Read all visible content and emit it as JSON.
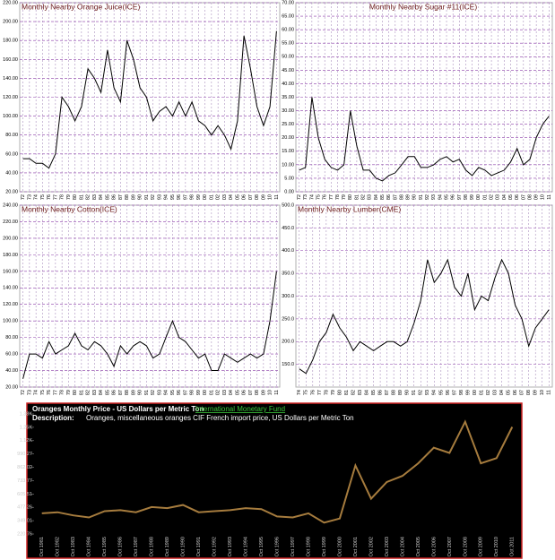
{
  "chart_data": [
    {
      "type": "line",
      "title": "Monthly Nearby Orange Juice(ICE)",
      "color": "#000000",
      "grid": true,
      "categories": [
        "72",
        "73",
        "74",
        "75",
        "76",
        "77",
        "78",
        "79",
        "80",
        "81",
        "82",
        "83",
        "84",
        "85",
        "86",
        "87",
        "88",
        "89",
        "90",
        "91",
        "92",
        "93",
        "94",
        "95",
        "96",
        "97",
        "98",
        "99",
        "00",
        "01",
        "02",
        "03",
        "04",
        "05",
        "06",
        "07",
        "08",
        "09",
        "10",
        "11"
      ],
      "values": [
        55,
        55,
        50,
        50,
        45,
        60,
        120,
        110,
        95,
        110,
        150,
        140,
        125,
        170,
        130,
        115,
        180,
        160,
        130,
        120,
        95,
        105,
        110,
        100,
        115,
        100,
        115,
        95,
        90,
        80,
        90,
        80,
        65,
        95,
        185,
        150,
        110,
        90,
        110,
        190
      ],
      "ylim": [
        20,
        220
      ],
      "yticks": [
        {
          "value": 20,
          "label": "20.00"
        },
        {
          "value": 40,
          "label": "40.00"
        },
        {
          "value": 60,
          "label": "60.00"
        },
        {
          "value": 80,
          "label": "80.00"
        },
        {
          "value": 100,
          "label": "100.00"
        },
        {
          "value": 120,
          "label": "120.00"
        },
        {
          "value": 140,
          "label": "140.00"
        },
        {
          "value": 160,
          "label": "160.00"
        },
        {
          "value": 180,
          "label": "180.00"
        },
        {
          "value": 200,
          "label": "200.00"
        },
        {
          "value": 220,
          "label": "220.00"
        }
      ]
    },
    {
      "type": "line",
      "title": "Monthly Nearby Sugar #11(ICE)",
      "color": "#000000",
      "grid": true,
      "categories": [
        "72",
        "73",
        "74",
        "75",
        "76",
        "77",
        "78",
        "79",
        "80",
        "81",
        "82",
        "83",
        "84",
        "85",
        "86",
        "87",
        "88",
        "89",
        "90",
        "91",
        "92",
        "93",
        "94",
        "95",
        "96",
        "97",
        "98",
        "99",
        "00",
        "01",
        "02",
        "03",
        "04",
        "05",
        "06",
        "07",
        "08",
        "09",
        "10",
        "11"
      ],
      "values": [
        8,
        9,
        35,
        20,
        12,
        9,
        8,
        10,
        30,
        17,
        8,
        8,
        5,
        4,
        6,
        7,
        10,
        13,
        13,
        9,
        9,
        10,
        12,
        13,
        11,
        12,
        8,
        6,
        9,
        8,
        6,
        7,
        8,
        11,
        16,
        10,
        12,
        20,
        25,
        28
      ],
      "ylim": [
        0,
        70
      ],
      "yticks": [
        {
          "value": 0,
          "label": "0.00"
        },
        {
          "value": 5,
          "label": "5.00"
        },
        {
          "value": 10,
          "label": "10.00"
        },
        {
          "value": 15,
          "label": "15.00"
        },
        {
          "value": 20,
          "label": "20.00"
        },
        {
          "value": 25,
          "label": "25.00"
        },
        {
          "value": 30,
          "label": "30.00"
        },
        {
          "value": 35,
          "label": "35.00"
        },
        {
          "value": 40,
          "label": "40.00"
        },
        {
          "value": 45,
          "label": "45.00"
        },
        {
          "value": 50,
          "label": "50.00"
        },
        {
          "value": 55,
          "label": "55.00"
        },
        {
          "value": 60,
          "label": "60.00"
        },
        {
          "value": 65,
          "label": "65.00"
        },
        {
          "value": 70,
          "label": "70.00"
        }
      ]
    },
    {
      "type": "line",
      "title": "Monthly Nearby Cotton(ICE)",
      "color": "#000000",
      "grid": true,
      "categories": [
        "72",
        "73",
        "74",
        "75",
        "76",
        "77",
        "78",
        "79",
        "80",
        "81",
        "82",
        "83",
        "84",
        "85",
        "86",
        "87",
        "88",
        "89",
        "90",
        "91",
        "92",
        "93",
        "94",
        "95",
        "96",
        "97",
        "98",
        "99",
        "00",
        "01",
        "02",
        "03",
        "04",
        "05",
        "06",
        "07",
        "08",
        "09",
        "10",
        "11"
      ],
      "values": [
        30,
        60,
        60,
        55,
        75,
        60,
        65,
        70,
        85,
        70,
        65,
        75,
        70,
        60,
        45,
        70,
        60,
        70,
        75,
        70,
        55,
        60,
        80,
        100,
        80,
        75,
        65,
        55,
        60,
        40,
        40,
        60,
        55,
        50,
        55,
        60,
        55,
        60,
        100,
        160
      ],
      "ylim": [
        20,
        240
      ],
      "yticks": [
        {
          "value": 20,
          "label": "20.00"
        },
        {
          "value": 40,
          "label": "40.00"
        },
        {
          "value": 60,
          "label": "60.00"
        },
        {
          "value": 80,
          "label": "80.00"
        },
        {
          "value": 100,
          "label": "100.00"
        },
        {
          "value": 120,
          "label": "120.00"
        },
        {
          "value": 140,
          "label": "140.00"
        },
        {
          "value": 160,
          "label": "160.00"
        },
        {
          "value": 180,
          "label": "180.00"
        },
        {
          "value": 200,
          "label": "200.00"
        },
        {
          "value": 220,
          "label": "220.00"
        },
        {
          "value": 240,
          "label": "240.00"
        }
      ]
    },
    {
      "type": "line",
      "title": "Monthly Nearby Lumber(CME)",
      "color": "#000000",
      "grid": true,
      "categories": [
        "74",
        "75",
        "76",
        "77",
        "78",
        "79",
        "80",
        "81",
        "82",
        "83",
        "84",
        "85",
        "86",
        "87",
        "88",
        "89",
        "90",
        "91",
        "92",
        "93",
        "94",
        "95",
        "96",
        "97",
        "98",
        "99",
        "00",
        "01",
        "02",
        "03",
        "04",
        "05",
        "06",
        "07",
        "08",
        "09",
        "10",
        "11"
      ],
      "values": [
        140,
        130,
        160,
        200,
        220,
        260,
        230,
        210,
        180,
        200,
        190,
        180,
        190,
        200,
        200,
        190,
        200,
        240,
        290,
        380,
        330,
        350,
        380,
        320,
        300,
        350,
        270,
        300,
        290,
        340,
        380,
        350,
        280,
        250,
        190,
        230,
        250,
        270
      ],
      "ylim": [
        100,
        500
      ],
      "yticks": [
        {
          "value": 150,
          "label": "150.0"
        },
        {
          "value": 200,
          "label": "200.0"
        },
        {
          "value": 250,
          "label": "250.0"
        },
        {
          "value": 300,
          "label": "300.0"
        },
        {
          "value": 350,
          "label": "350.0"
        },
        {
          "value": 400,
          "label": "400.0"
        },
        {
          "value": 450,
          "label": "450.0"
        },
        {
          "value": 500,
          "label": "500.0"
        }
      ]
    },
    {
      "type": "line",
      "title": "Oranges Monthly Price - US Dollars per Metric Ton",
      "source": "International Monetary Fund",
      "description_label": "Description:",
      "description": "Oranges, miscellaneous oranges CIF French import price, US Dollars per Metric Ton",
      "color": "#a67c3e",
      "grid": false,
      "categories": [
        "Oct 1981",
        "Oct 1982",
        "Oct 1983",
        "Oct 1984",
        "Oct 1985",
        "Oct 1986",
        "Oct 1987",
        "Oct 1988",
        "Oct 1989",
        "Oct 1990",
        "Oct 1991",
        "Oct 1992",
        "Oct 1993",
        "Oct 1994",
        "Oct 1995",
        "Oct 1996",
        "Oct 1997",
        "Oct 1998",
        "Oct 1999",
        "Oct 2000",
        "Oct 2001",
        "Oct 2002",
        "Oct 2003",
        "Oct 2004",
        "Oct 2005",
        "Oct 2006",
        "Oct 2007",
        "Oct 2008",
        "Oct 2009",
        "Oct 2010",
        "Oct 2011"
      ],
      "values": [
        420,
        430,
        400,
        380,
        440,
        450,
        430,
        480,
        470,
        500,
        430,
        440,
        450,
        470,
        460,
        390,
        380,
        420,
        330,
        370,
        880,
        560,
        720,
        780,
        900,
        1050,
        1000,
        1300,
        900,
        950,
        1250
      ],
      "ylim": [
        220.76,
        1375.02
      ],
      "yticks": [
        220.76,
        349.01,
        477.26,
        605.51,
        733.77,
        862.02,
        990.27,
        {
          "value": 1118.52,
          "label": "1.12K"
        },
        {
          "value": 1246.77,
          "label": "1.25K"
        },
        {
          "value": 1375.02,
          "label": "1.38K"
        }
      ]
    }
  ]
}
